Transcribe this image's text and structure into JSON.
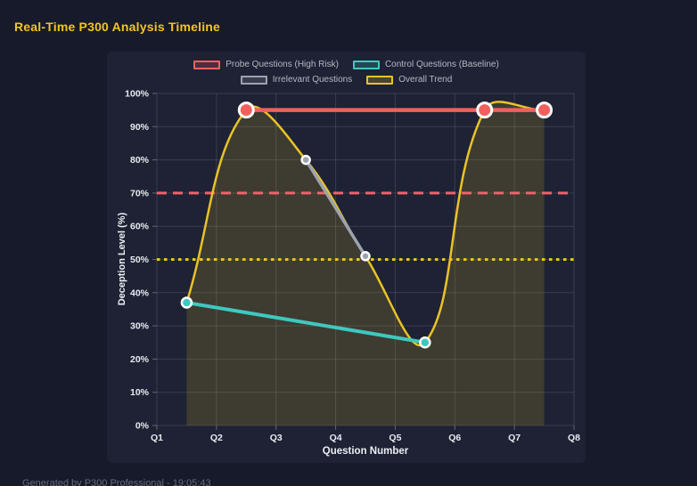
{
  "header": {
    "title": "Real-Time P300 Analysis Timeline"
  },
  "footer": {
    "text": "Generated by P300 Professional - 19:05:43"
  },
  "colors": {
    "page_bg": "#171a2b",
    "panel_bg": "#1e2234",
    "title": "#f2c51d",
    "grid": "rgba(255,255,255,0.12)",
    "tick": "rgba(255,255,255,0.30)",
    "legend_text": "#b4b8c4",
    "trend_fill": "rgba(233,195,38,0.16)"
  },
  "chart_data": {
    "type": "line",
    "title": "Real-Time P300 Analysis Timeline",
    "xlabel": "Question Number",
    "ylabel": "Deception Level (%)",
    "x_axis": {
      "min": 1,
      "max": 8,
      "ticks": [
        1,
        2,
        3,
        4,
        5,
        6,
        7,
        8
      ],
      "tick_labels": [
        "Q1",
        "Q2",
        "Q3",
        "Q4",
        "Q5",
        "Q6",
        "Q7",
        "Q8"
      ]
    },
    "y_axis": {
      "min": 0,
      "max": 100,
      "tick_step": 10,
      "tick_suffix": "%"
    },
    "grid": true,
    "legend_position": "top",
    "thresholds": [
      {
        "value": 70,
        "color": "#f4606c",
        "style": "dashed",
        "width": 3
      },
      {
        "value": 50,
        "color": "#e9c326",
        "style": "dotted",
        "width": 3
      }
    ],
    "series": [
      {
        "name": "Overall Trend",
        "role": "trend",
        "color": "#e9c326",
        "line_width": 2.5,
        "smooth": true,
        "tension": 0.4,
        "fill_to_zero": true,
        "point_radius": 0,
        "points": [
          {
            "x": 1.5,
            "y": 37
          },
          {
            "x": 2.5,
            "y": 95
          },
          {
            "x": 3.5,
            "y": 80
          },
          {
            "x": 4.5,
            "y": 51
          },
          {
            "x": 5.5,
            "y": 25
          },
          {
            "x": 6.5,
            "y": 95
          },
          {
            "x": 7.5,
            "y": 95
          }
        ]
      },
      {
        "name": "Irrelevant Questions",
        "role": "series",
        "color": "#9da2ae",
        "line_width": 3.5,
        "smooth": false,
        "point_radius": 4.5,
        "point_border": 2.5,
        "points": [
          {
            "x": 3.5,
            "y": 80
          },
          {
            "x": 4.5,
            "y": 51
          }
        ]
      },
      {
        "name": "Control Questions (Baseline)",
        "role": "series",
        "color": "#3fc8c0",
        "line_width": 4,
        "smooth": false,
        "point_radius": 5.5,
        "point_border": 2.5,
        "points": [
          {
            "x": 1.5,
            "y": 37
          },
          {
            "x": 5.5,
            "y": 25
          }
        ]
      },
      {
        "name": "Probe Questions (High Risk)",
        "role": "series",
        "color": "#f2605e",
        "line_width": 4.5,
        "smooth": false,
        "point_radius": 8,
        "point_border": 3,
        "points": [
          {
            "x": 2.5,
            "y": 95
          },
          {
            "x": 6.5,
            "y": 95
          },
          {
            "x": 7.5,
            "y": 95
          }
        ]
      }
    ],
    "legend_order": [
      "Probe Questions (High Risk)",
      "Control Questions (Baseline)",
      "Irrelevant Questions",
      "Overall Trend"
    ]
  }
}
